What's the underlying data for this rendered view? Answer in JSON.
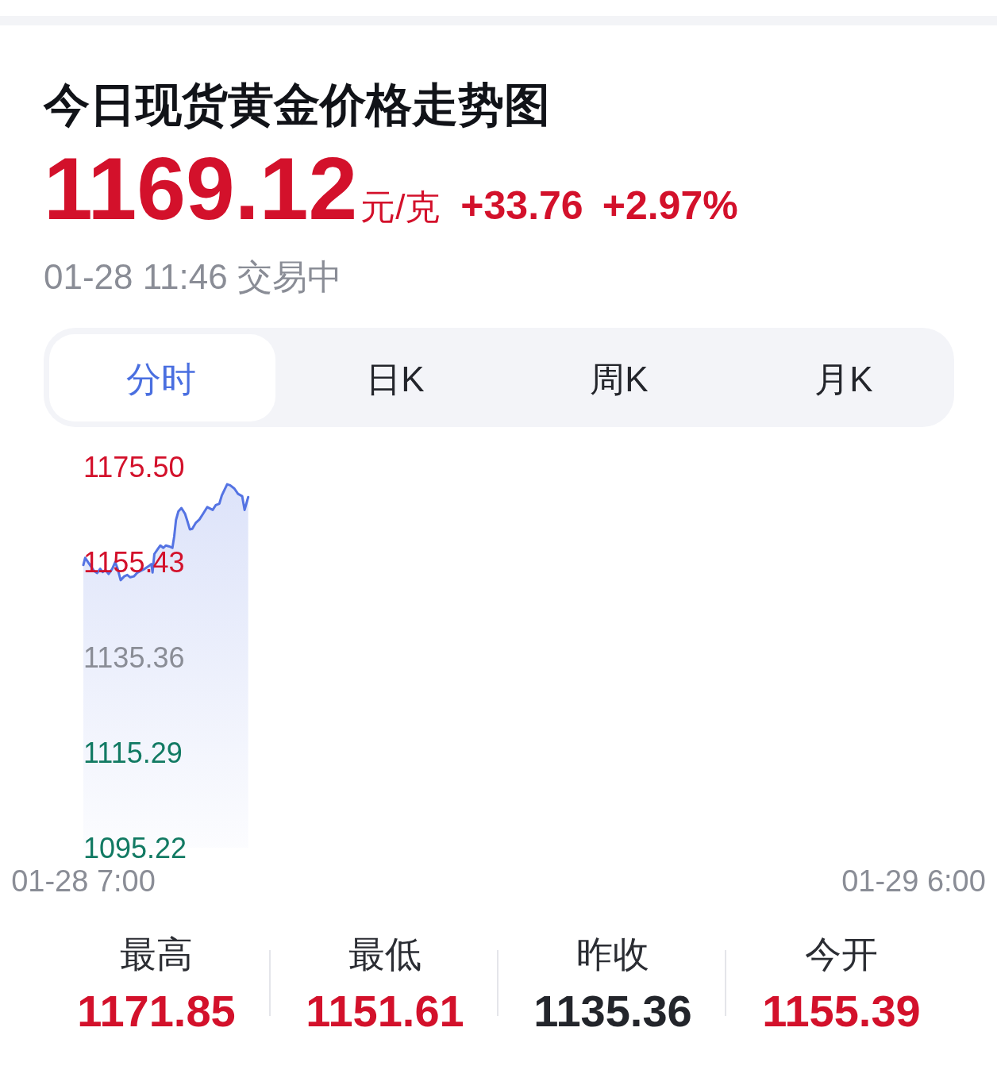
{
  "chart_data": {
    "type": "area",
    "title": "今日现货黄金价格走势图",
    "subtitle": "01-28 11:46 交易中",
    "annotations": [
      "1169.12",
      "元/克",
      "+33.76",
      "+2.97%",
      "分时",
      "日K",
      "周K",
      "月K",
      "最高",
      "1171.85",
      "最低",
      "1151.61",
      "昨收",
      "1135.36",
      "今开",
      "1155.39"
    ],
    "x": [
      "--01-28T07:00",
      "--01-28T07:03",
      "--01-28T07:10",
      "--01-28T07:18",
      "--01-28T07:23",
      "--01-28T07:28",
      "--01-28T07:32",
      "--01-28T07:37",
      "--01-28T07:42",
      "--01-28T07:48",
      "--01-28T07:53",
      "--01-28T07:57",
      "--01-28T08:02",
      "--01-28T08:08",
      "--01-28T08:13",
      "--01-28T08:18",
      "--01-28T08:24",
      "--01-28T08:30",
      "--01-28T08:36",
      "--01-28T08:42",
      "--01-28T08:48",
      "--01-28T08:53",
      "--01-28T08:55",
      "--01-28T08:58",
      "--01-28T09:04",
      "--01-28T09:08",
      "--01-28T09:13",
      "--01-28T09:17",
      "--01-28T09:23",
      "--01-28T09:28",
      "--01-28T09:31",
      "--01-28T09:34",
      "--01-28T09:38",
      "--01-28T09:43",
      "--01-28T09:49",
      "--01-28T09:53",
      "--01-28T09:57",
      "--01-28T10:01",
      "--01-28T10:07",
      "--01-28T10:13",
      "--01-28T10:19",
      "--01-28T10:26",
      "--01-28T10:35",
      "--01-28T10:40",
      "--01-28T10:46",
      "--01-28T10:50",
      "--01-28T10:59",
      "--01-28T11:04",
      "--01-28T11:11",
      "--01-28T11:17",
      "--01-28T11:24",
      "--01-28T11:28",
      "--01-28T11:34"
    ],
    "series": [
      {
        "color": "#5473e3",
        "values": [
          1154.8,
          1156.3,
          1155.0,
          1153.5,
          1153.1,
          1154.0,
          1153.3,
          1153.7,
          1152.9,
          1154.0,
          1155.4,
          1154.0,
          1151.6,
          1152.4,
          1152.7,
          1152.2,
          1152.4,
          1153.2,
          1153.6,
          1154.0,
          1154.5,
          1155.0,
          1153.2,
          1157.1,
          1158.2,
          1158.9,
          1158.4,
          1158.9,
          1158.7,
          1158.4,
          1160.8,
          1164.3,
          1166.1,
          1166.8,
          1165.6,
          1164.0,
          1162.3,
          1162.4,
          1163.7,
          1164.4,
          1165.6,
          1167.0,
          1166.4,
          1167.4,
          1167.7,
          1169.4,
          1171.8,
          1171.6,
          1170.9,
          1169.8,
          1169.3,
          1166.4,
          1169.1
        ]
      }
    ],
    "xlim": [
      "--01-28T07:00",
      "--01-29T06:00"
    ],
    "xticks": [
      {
        "value": "--01-28T07:00",
        "label": "01-28 7:00"
      },
      {
        "value": "--01-29T06:00",
        "label": "01-29 6:00"
      }
    ],
    "ylim": [
      1095.22,
      1175.5
    ],
    "yticks": [
      {
        "value": 1175.5,
        "label": "1175.50"
      },
      1155.43,
      1135.36,
      1115.29,
      1095.22
    ]
  }
}
